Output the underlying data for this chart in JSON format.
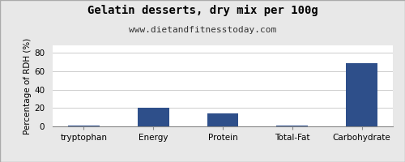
{
  "title": "Gelatin desserts, dry mix per 100g",
  "subtitle": "www.dietandfitnesstoday.com",
  "categories": [
    "tryptophan",
    "Energy",
    "Protein",
    "Total-Fat",
    "Carbohydrate"
  ],
  "values": [
    0.5,
    20,
    14,
    0.5,
    69
  ],
  "bar_color": "#2e4f8a",
  "ylabel": "Percentage of RDH (%)",
  "ylim": [
    0,
    88
  ],
  "yticks": [
    0,
    20,
    40,
    60,
    80
  ],
  "background_color": "#e8e8e8",
  "plot_background": "#ffffff",
  "title_fontsize": 10,
  "subtitle_fontsize": 8,
  "tick_fontsize": 7.5,
  "ylabel_fontsize": 7.5
}
